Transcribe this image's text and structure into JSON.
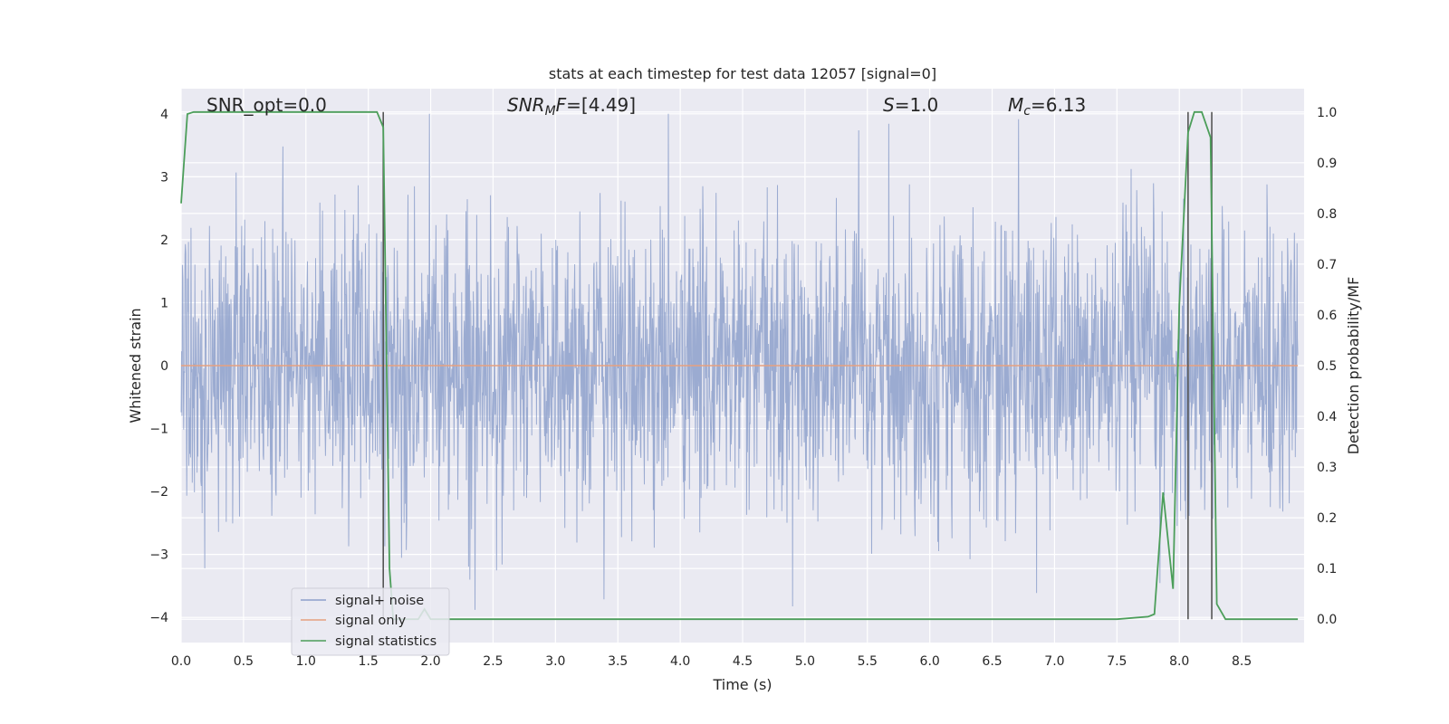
{
  "chart_data": {
    "type": "line",
    "title": "stats at each timestep for test data 12057 [signal=0]",
    "xlabel": "Time (s)",
    "ylabel": "Whitened strain",
    "y2label": "Detection probability/MF",
    "xlim": [
      0.0,
      9.0
    ],
    "ylim": [
      -4.4,
      4.4
    ],
    "y2lim": [
      -0.046,
      1.046
    ],
    "x_ticks": [
      "0.0",
      "0.5",
      "1.0",
      "1.5",
      "2.0",
      "2.5",
      "3.0",
      "3.5",
      "4.0",
      "4.5",
      "5.0",
      "5.5",
      "6.0",
      "6.5",
      "7.0",
      "7.5",
      "8.0",
      "8.5"
    ],
    "y_ticks": [
      "−4",
      "−3",
      "−2",
      "−1",
      "0",
      "1",
      "2",
      "3",
      "4"
    ],
    "y2_ticks": [
      "0.0",
      "0.1",
      "0.2",
      "0.3",
      "0.4",
      "0.5",
      "0.6",
      "0.7",
      "0.8",
      "0.9",
      "1.0"
    ],
    "grid": true,
    "legend_position": "lower-left",
    "annotations": {
      "snr_opt": "SNR_opt=0.0",
      "snr_mf_label": "SNR",
      "snr_mf_sub": "M",
      "snr_mf_rest": "F=[4.49]",
      "s_label": "S",
      "s_rest": "=1.0",
      "mc_label": "M",
      "mc_sub": "c",
      "mc_rest": "=6.13"
    },
    "series": [
      {
        "name": "signal+ noise",
        "color": "#8da0cb",
        "description_range": [
          -4.0,
          4.0
        ],
        "sampling_note": "dense whitened noise trace, roughly symmetric, |amplitude| mostly between 1.5 and 3.5"
      },
      {
        "name": "signal only",
        "color": "#e5a07f",
        "x": [
          0.0,
          9.0
        ],
        "y": [
          0.0,
          0.0
        ]
      },
      {
        "name": "signal statistics",
        "color": "#4c9e5a",
        "axis": "right",
        "x": [
          0.0,
          0.05,
          0.1,
          0.2,
          0.5,
          1.0,
          1.5,
          1.57,
          1.62,
          1.67,
          1.7,
          1.75,
          1.8,
          1.9,
          1.95,
          2.0,
          2.5,
          3.0,
          3.5,
          4.0,
          4.5,
          5.0,
          5.5,
          6.0,
          6.5,
          7.0,
          7.5,
          7.75,
          7.8,
          7.87,
          7.95,
          8.0,
          8.07,
          8.12,
          8.18,
          8.25,
          8.3,
          8.37,
          8.5,
          8.95
        ],
        "y": [
          0.82,
          0.996,
          1.0,
          1.0,
          1.0,
          1.0,
          1.0,
          1.0,
          0.97,
          0.1,
          0.0,
          0.0,
          0.0,
          0.0,
          0.02,
          0.0,
          0.0,
          0.0,
          0.0,
          0.0,
          0.0,
          0.0,
          0.0,
          0.0,
          0.0,
          0.0,
          0.0,
          0.005,
          0.01,
          0.25,
          0.06,
          0.62,
          0.96,
          1.0,
          1.0,
          0.95,
          0.03,
          0.0,
          0.0,
          0.0
        ]
      }
    ],
    "vertical_lines_x": [
      1.62,
      8.07,
      8.26
    ],
    "legend": [
      {
        "label": "signal+ noise",
        "color": "#8da0cb"
      },
      {
        "label": "signal only",
        "color": "#e5a07f"
      },
      {
        "label": "signal statistics",
        "color": "#4c9e5a"
      }
    ]
  }
}
